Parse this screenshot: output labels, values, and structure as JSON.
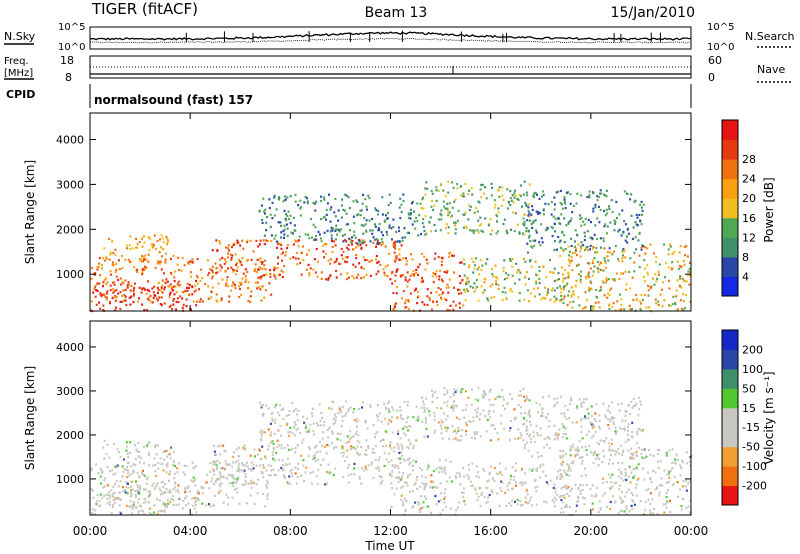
{
  "header": {
    "station": "TIGER (fitACF)",
    "beam": "Beam 13",
    "date": "15/Jan/2010"
  },
  "left_labels": {
    "nsky": "N.Sky",
    "freq_line1": "Freq.",
    "freq_line2": "[MHz]",
    "cpid": "CPID"
  },
  "right_labels": {
    "nsearch": "N.Search",
    "nave": "Nave"
  },
  "mode_label": "normalsound (fast) 157",
  "x_axis_title": "Time UT",
  "colors": {
    "power": [
      "#1428e6",
      "#2a47a8",
      "#3f8f6a",
      "#52a852",
      "#f0c020",
      "#f7a010",
      "#f07010",
      "#e63a10",
      "#e61414"
    ],
    "velocity": [
      "#e61414",
      "#f07010",
      "#f0a030",
      "#c8c8c0",
      "#c8c8c0",
      "#52c832",
      "#3f8f6a",
      "#2a47a8",
      "#1428c8"
    ]
  },
  "chart_data": [
    {
      "type": "line",
      "name": "noise",
      "left_axis": {
        "label": "N.Sky",
        "ticks": [
          "10^5",
          "10^0"
        ]
      },
      "right_axis": {
        "label": "N.Search",
        "ticks": [
          "10^5",
          "10^0"
        ]
      }
    },
    {
      "type": "line",
      "name": "frequency",
      "left_axis": {
        "label": "Freq. [MHz]",
        "ticks": [
          "18",
          "8"
        ]
      },
      "right_axis": {
        "label": "Nave",
        "ticks": [
          "60",
          "0"
        ]
      }
    },
    {
      "type": "heatmap",
      "name": "power",
      "xlabel": "",
      "ylabel": "Slant Range [km]",
      "x_ticks": [
        "00:00",
        "04:00",
        "08:00",
        "12:00",
        "16:00",
        "20:00",
        "00:00"
      ],
      "y_ticks": [
        "1000",
        "2000",
        "3000",
        "4000"
      ],
      "ylim": [
        180,
        4590
      ],
      "colorbar": {
        "label": "Power [dB]",
        "ticks": [
          "4",
          "8",
          "12",
          "16",
          "20",
          "24",
          "28"
        ]
      }
    },
    {
      "type": "heatmap",
      "name": "velocity",
      "xlabel": "Time UT",
      "ylabel": "Slant Range [km]",
      "x_ticks": [
        "00:00",
        "04:00",
        "08:00",
        "12:00",
        "16:00",
        "20:00",
        "00:00"
      ],
      "y_ticks": [
        "1000",
        "2000",
        "3000",
        "4000"
      ],
      "ylim": [
        180,
        4590
      ],
      "colorbar": {
        "label": "Velocity [m s⁻¹]",
        "ticks": [
          "200",
          "100",
          "50",
          "15",
          "-15",
          "-50",
          "-100",
          "-200"
        ]
      }
    }
  ]
}
